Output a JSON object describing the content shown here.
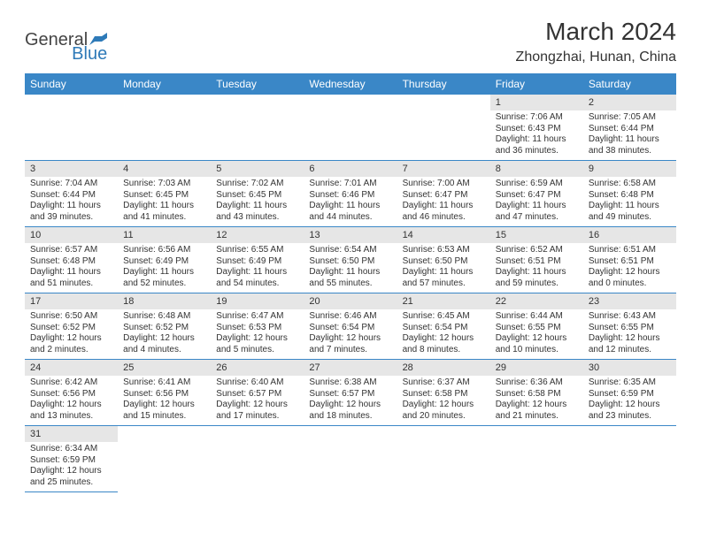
{
  "logo": {
    "text1": "General",
    "text2": "Blue"
  },
  "title": "March 2024",
  "location": "Zhongzhai, Hunan, China",
  "colors": {
    "header_bg": "#3a87c7",
    "header_fg": "#ffffff",
    "daynum_bg": "#e6e6e6",
    "border": "#3a87c7",
    "title_color": "#333333",
    "logo_general": "#444444",
    "logo_blue": "#2e7ab8",
    "logo_shape": "#2e7ab8"
  },
  "weekdays": [
    "Sunday",
    "Monday",
    "Tuesday",
    "Wednesday",
    "Thursday",
    "Friday",
    "Saturday"
  ],
  "leading_blanks": 5,
  "days": [
    {
      "n": "1",
      "sr": "7:06 AM",
      "ss": "6:43 PM",
      "dl": "11 hours and 36 minutes."
    },
    {
      "n": "2",
      "sr": "7:05 AM",
      "ss": "6:44 PM",
      "dl": "11 hours and 38 minutes."
    },
    {
      "n": "3",
      "sr": "7:04 AM",
      "ss": "6:44 PM",
      "dl": "11 hours and 39 minutes."
    },
    {
      "n": "4",
      "sr": "7:03 AM",
      "ss": "6:45 PM",
      "dl": "11 hours and 41 minutes."
    },
    {
      "n": "5",
      "sr": "7:02 AM",
      "ss": "6:45 PM",
      "dl": "11 hours and 43 minutes."
    },
    {
      "n": "6",
      "sr": "7:01 AM",
      "ss": "6:46 PM",
      "dl": "11 hours and 44 minutes."
    },
    {
      "n": "7",
      "sr": "7:00 AM",
      "ss": "6:47 PM",
      "dl": "11 hours and 46 minutes."
    },
    {
      "n": "8",
      "sr": "6:59 AM",
      "ss": "6:47 PM",
      "dl": "11 hours and 47 minutes."
    },
    {
      "n": "9",
      "sr": "6:58 AM",
      "ss": "6:48 PM",
      "dl": "11 hours and 49 minutes."
    },
    {
      "n": "10",
      "sr": "6:57 AM",
      "ss": "6:48 PM",
      "dl": "11 hours and 51 minutes."
    },
    {
      "n": "11",
      "sr": "6:56 AM",
      "ss": "6:49 PM",
      "dl": "11 hours and 52 minutes."
    },
    {
      "n": "12",
      "sr": "6:55 AM",
      "ss": "6:49 PM",
      "dl": "11 hours and 54 minutes."
    },
    {
      "n": "13",
      "sr": "6:54 AM",
      "ss": "6:50 PM",
      "dl": "11 hours and 55 minutes."
    },
    {
      "n": "14",
      "sr": "6:53 AM",
      "ss": "6:50 PM",
      "dl": "11 hours and 57 minutes."
    },
    {
      "n": "15",
      "sr": "6:52 AM",
      "ss": "6:51 PM",
      "dl": "11 hours and 59 minutes."
    },
    {
      "n": "16",
      "sr": "6:51 AM",
      "ss": "6:51 PM",
      "dl": "12 hours and 0 minutes."
    },
    {
      "n": "17",
      "sr": "6:50 AM",
      "ss": "6:52 PM",
      "dl": "12 hours and 2 minutes."
    },
    {
      "n": "18",
      "sr": "6:48 AM",
      "ss": "6:52 PM",
      "dl": "12 hours and 4 minutes."
    },
    {
      "n": "19",
      "sr": "6:47 AM",
      "ss": "6:53 PM",
      "dl": "12 hours and 5 minutes."
    },
    {
      "n": "20",
      "sr": "6:46 AM",
      "ss": "6:54 PM",
      "dl": "12 hours and 7 minutes."
    },
    {
      "n": "21",
      "sr": "6:45 AM",
      "ss": "6:54 PM",
      "dl": "12 hours and 8 minutes."
    },
    {
      "n": "22",
      "sr": "6:44 AM",
      "ss": "6:55 PM",
      "dl": "12 hours and 10 minutes."
    },
    {
      "n": "23",
      "sr": "6:43 AM",
      "ss": "6:55 PM",
      "dl": "12 hours and 12 minutes."
    },
    {
      "n": "24",
      "sr": "6:42 AM",
      "ss": "6:56 PM",
      "dl": "12 hours and 13 minutes."
    },
    {
      "n": "25",
      "sr": "6:41 AM",
      "ss": "6:56 PM",
      "dl": "12 hours and 15 minutes."
    },
    {
      "n": "26",
      "sr": "6:40 AM",
      "ss": "6:57 PM",
      "dl": "12 hours and 17 minutes."
    },
    {
      "n": "27",
      "sr": "6:38 AM",
      "ss": "6:57 PM",
      "dl": "12 hours and 18 minutes."
    },
    {
      "n": "28",
      "sr": "6:37 AM",
      "ss": "6:58 PM",
      "dl": "12 hours and 20 minutes."
    },
    {
      "n": "29",
      "sr": "6:36 AM",
      "ss": "6:58 PM",
      "dl": "12 hours and 21 minutes."
    },
    {
      "n": "30",
      "sr": "6:35 AM",
      "ss": "6:59 PM",
      "dl": "12 hours and 23 minutes."
    },
    {
      "n": "31",
      "sr": "6:34 AM",
      "ss": "6:59 PM",
      "dl": "12 hours and 25 minutes."
    }
  ],
  "labels": {
    "sunrise": "Sunrise: ",
    "sunset": "Sunset: ",
    "daylight": "Daylight: "
  }
}
